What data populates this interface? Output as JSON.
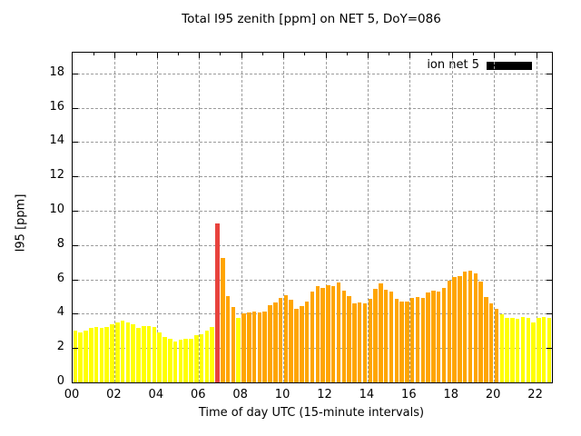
{
  "title": "Total I95 zenith [ppm] on NET 5, DoY=086",
  "legend": {
    "label": "ion net 5",
    "swatch_color": "#000000"
  },
  "chart_data": {
    "type": "bar",
    "title": "Total I95 zenith [ppm] on NET 5, DoY=086",
    "xlabel": "Time of day UTC (15-minute intervals)",
    "ylabel": "I95 [ppm]",
    "ylim": [
      0,
      19.2
    ],
    "xlim_hours": [
      0,
      22.75
    ],
    "grid": "dashed",
    "legend_position": "top-right-inside",
    "y_ticks": [
      0,
      2,
      4,
      6,
      8,
      10,
      12,
      14,
      16,
      18
    ],
    "x_major_tick_labels": [
      "00",
      "02",
      "04",
      "06",
      "08",
      "10",
      "12",
      "14",
      "16",
      "18",
      "20",
      "22"
    ],
    "x_major_tick_hours": [
      0,
      2,
      4,
      6,
      8,
      10,
      12,
      14,
      16,
      18,
      20,
      22
    ],
    "x_minor_tick_hours": [
      1,
      3,
      5,
      7,
      9,
      11,
      13,
      15,
      17,
      19,
      21
    ],
    "interval_minutes": 15,
    "color_map": {
      "Y": "#ffff00",
      "O": "#ffa500",
      "R": "#e8433d"
    },
    "series": [
      {
        "name": "ion net 5",
        "times": [
          "00:00",
          "00:15",
          "00:30",
          "00:45",
          "01:00",
          "01:15",
          "01:30",
          "01:45",
          "02:00",
          "02:15",
          "02:30",
          "02:45",
          "03:00",
          "03:15",
          "03:30",
          "03:45",
          "04:00",
          "04:15",
          "04:30",
          "04:45",
          "05:00",
          "05:15",
          "05:30",
          "05:45",
          "06:00",
          "06:15",
          "06:30",
          "06:45",
          "07:00",
          "07:15",
          "07:30",
          "07:45",
          "08:00",
          "08:15",
          "08:30",
          "08:45",
          "09:00",
          "09:15",
          "09:30",
          "09:45",
          "10:00",
          "10:15",
          "10:30",
          "10:45",
          "11:00",
          "11:15",
          "11:30",
          "11:45",
          "12:00",
          "12:15",
          "12:30",
          "12:45",
          "13:00",
          "13:15",
          "13:30",
          "13:45",
          "14:00",
          "14:15",
          "14:30",
          "14:45",
          "15:00",
          "15:15",
          "15:30",
          "15:45",
          "16:00",
          "16:15",
          "16:30",
          "16:45",
          "17:00",
          "17:15",
          "17:30",
          "17:45",
          "18:00",
          "18:15",
          "18:30",
          "18:45",
          "19:00",
          "19:15",
          "19:30",
          "19:45",
          "20:00",
          "20:15",
          "20:30",
          "20:45",
          "21:00",
          "21:15",
          "21:30",
          "21:45",
          "22:00",
          "22:15",
          "22:30"
        ],
        "values": [
          3.0,
          2.9,
          3.0,
          3.2,
          3.25,
          3.15,
          3.25,
          3.4,
          3.5,
          3.6,
          3.5,
          3.4,
          3.15,
          3.3,
          3.3,
          3.25,
          2.9,
          2.65,
          2.55,
          2.4,
          2.5,
          2.55,
          2.55,
          2.75,
          2.8,
          3.0,
          3.25,
          9.25,
          7.25,
          5.0,
          4.4,
          3.75,
          4.0,
          4.05,
          4.1,
          4.05,
          4.1,
          4.5,
          4.65,
          4.9,
          5.1,
          4.8,
          4.3,
          4.45,
          4.7,
          5.3,
          5.6,
          5.5,
          5.65,
          5.6,
          5.8,
          5.35,
          5.0,
          4.6,
          4.65,
          4.6,
          4.85,
          5.45,
          5.75,
          5.4,
          5.3,
          4.85,
          4.7,
          4.7,
          4.9,
          4.95,
          4.9,
          5.25,
          5.35,
          5.3,
          5.5,
          5.9,
          6.15,
          6.2,
          6.45,
          6.5,
          6.35,
          5.85,
          4.95,
          4.6,
          4.3,
          3.95,
          3.75,
          3.75,
          3.7,
          3.8,
          3.75,
          3.5,
          3.75,
          3.8,
          3.75
        ],
        "bar_colors": [
          "Y",
          "Y",
          "Y",
          "Y",
          "Y",
          "Y",
          "Y",
          "Y",
          "Y",
          "Y",
          "Y",
          "Y",
          "Y",
          "Y",
          "Y",
          "Y",
          "Y",
          "Y",
          "Y",
          "Y",
          "Y",
          "Y",
          "Y",
          "Y",
          "Y",
          "Y",
          "Y",
          "R",
          "O",
          "O",
          "O",
          "Y",
          "O",
          "O",
          "O",
          "O",
          "O",
          "O",
          "O",
          "O",
          "O",
          "O",
          "O",
          "O",
          "O",
          "O",
          "O",
          "O",
          "O",
          "O",
          "O",
          "O",
          "O",
          "O",
          "O",
          "O",
          "O",
          "O",
          "O",
          "O",
          "O",
          "O",
          "O",
          "O",
          "O",
          "O",
          "O",
          "O",
          "O",
          "O",
          "O",
          "O",
          "O",
          "O",
          "O",
          "O",
          "O",
          "O",
          "O",
          "O",
          "O",
          "Y",
          "Y",
          "Y",
          "Y",
          "Y",
          "Y",
          "Y",
          "Y",
          "Y",
          "Y"
        ]
      }
    ]
  }
}
